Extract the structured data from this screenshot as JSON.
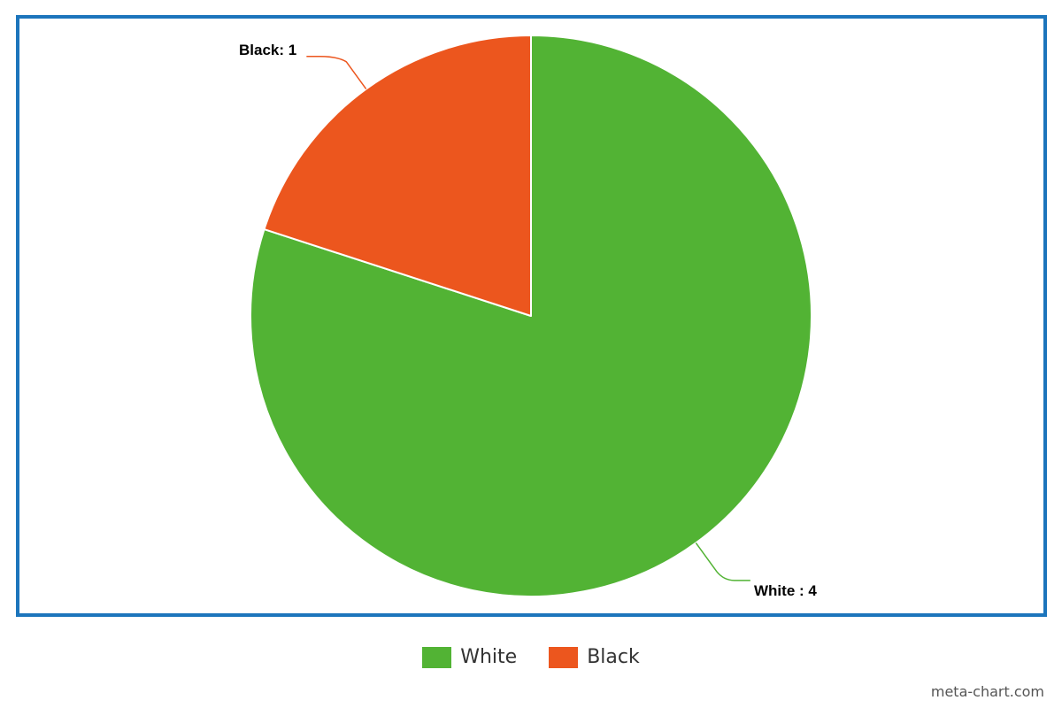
{
  "chart_data": {
    "type": "pie",
    "slices": [
      {
        "label": "White",
        "value": 4,
        "color": "#52b334",
        "data_label": "White : 4"
      },
      {
        "label": "Black",
        "value": 1,
        "color": "#ec561e",
        "data_label": "Black: 1"
      }
    ],
    "legend": [
      "White",
      "Black"
    ],
    "legend_position": "bottom",
    "start_angle_deg": 0,
    "direction": "clockwise"
  },
  "frame_color": "#1c75bc",
  "credit": "meta-chart.com"
}
